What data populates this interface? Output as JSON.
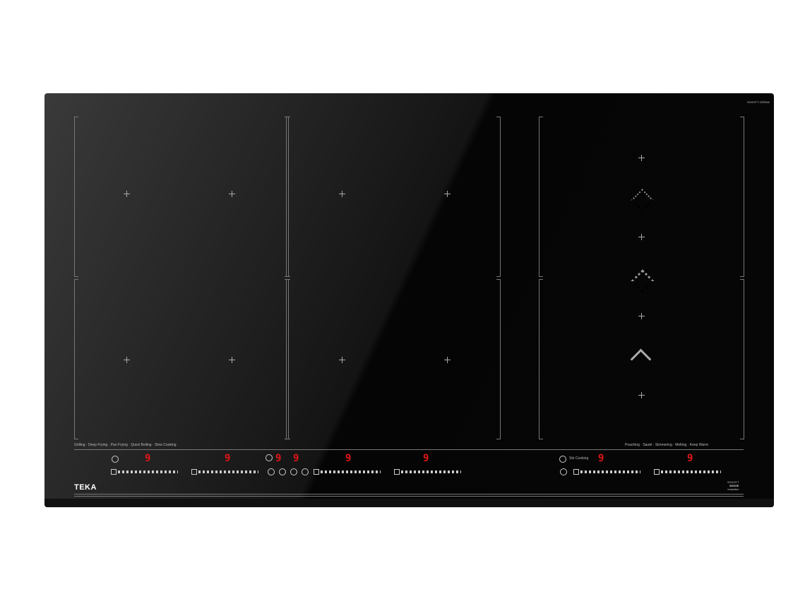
{
  "brand": "TEKA",
  "glass_brand": "SCHOTT CERAN",
  "badge": {
    "line1": "SCHOTT",
    "line2": "SENSE",
    "line3": "induction"
  },
  "left_functions": [
    "Grilling",
    "Deep Frying",
    "Pan Frying",
    "Quick Boiling",
    "Slow Cooking"
  ],
  "right_functions": [
    "Poaching",
    "Sauté",
    "Simmering",
    "Melting",
    "Keep Warm"
  ],
  "stir_label": "Stir Cooking",
  "displays": [
    "9",
    "9",
    "9",
    "9",
    "9",
    "9",
    "9",
    "9"
  ],
  "colors": {
    "display": "#e01515",
    "glass": "#0a0a0a"
  }
}
